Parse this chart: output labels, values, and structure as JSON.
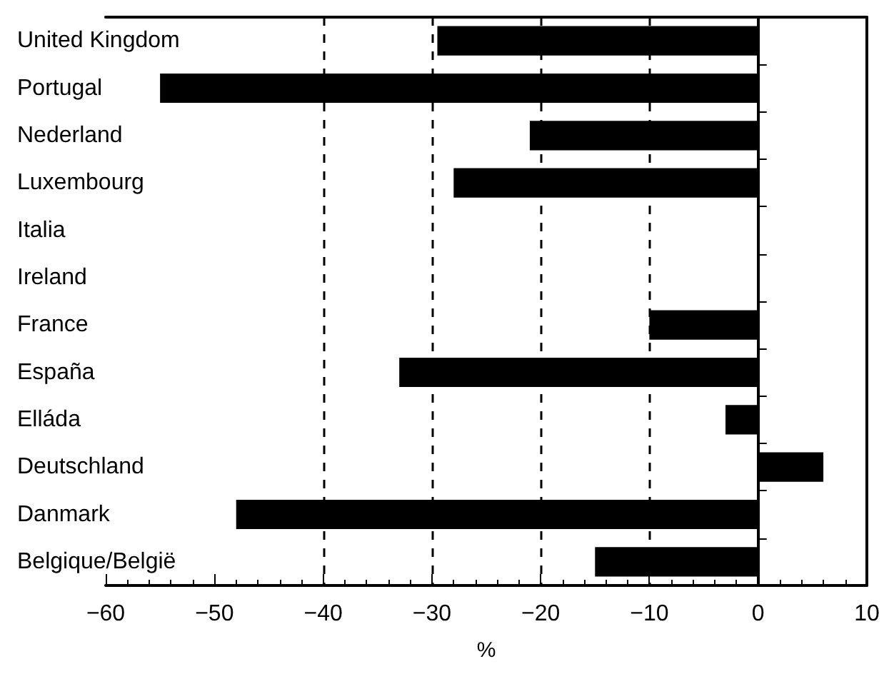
{
  "chart_data": {
    "type": "bar",
    "orientation": "horizontal",
    "xlabel": "%",
    "categories": [
      "United Kingdom",
      "Portugal",
      "Nederland",
      "Luxembourg",
      "Italia",
      "Ireland",
      "France",
      "España",
      "Elláda",
      "Deutschland",
      "Danmark",
      "Belgique/België"
    ],
    "values": [
      -29.5,
      -55,
      -21,
      -28,
      null,
      null,
      -10,
      -33,
      -3,
      6,
      -48,
      -15
    ],
    "color": "#000000",
    "xlim": [
      -60,
      10
    ],
    "xticks": [
      -60,
      -50,
      -40,
      -30,
      -20,
      -10,
      0,
      10
    ],
    "ref_lines": [
      {
        "axis": "x",
        "value": -40,
        "color": "#000000",
        "line_style": "dashed"
      },
      {
        "axis": "x",
        "value": -30,
        "color": "#000000",
        "line_style": "dashed"
      },
      {
        "axis": "x",
        "value": -20,
        "color": "#000000",
        "line_style": "dashed"
      },
      {
        "axis": "x",
        "value": -10,
        "color": "#000000",
        "line_style": "dashed"
      }
    ],
    "grid": false
  }
}
